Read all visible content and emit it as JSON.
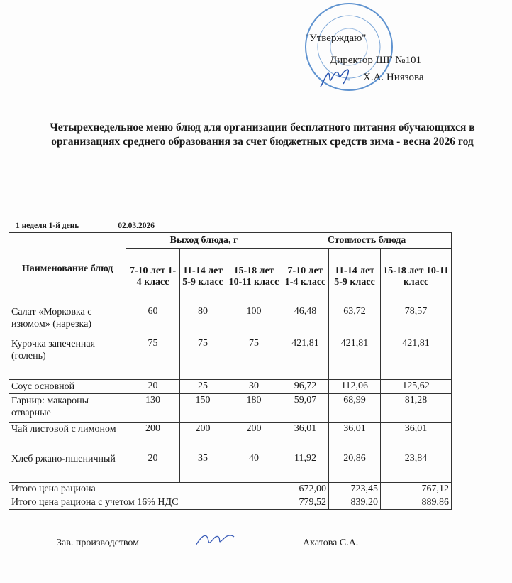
{
  "approval": {
    "approve_label": "\"Утверждаю\"",
    "position": "Директор ШГ №101",
    "name": "Х.А. Ниязова"
  },
  "stamp": {
    "text": "АЛМАТЫ ҚАЛАСЫ БІЛІМ БАСҚАРМАСЫНЫҢ №101 МЕКТЕП-ГИМНАЗИЯ КОММУНАЛДЫҚ МЕМЛЕКЕТТІК МЕКЕМЕСІ",
    "bin": "БСН 981140001002",
    "color": "#2a6fc0"
  },
  "title": "Четырехнедельное меню блюд для организации бесплатного питания обучающихся в организациях среднего образования за счет бюджетных средств    зима - весна 2026 год",
  "meta": {
    "day": "1 неделя 1-й день",
    "date": "02.03.2026"
  },
  "table": {
    "header": {
      "name": "Наименование блюд",
      "yield": "Выход блюда, г",
      "cost": "Стоимость блюда",
      "yield_cols": [
        "7-10 лет 1-4 класс",
        "11-14 лет 5-9 класс",
        "15-18 лет 10-11 класс"
      ],
      "cost_cols": [
        "7-10 лет 1-4 класс",
        "11-14 лет 5-9 класс",
        "15-18 лет 10-11 класс"
      ]
    },
    "rows": [
      {
        "name": "Салат «Морковка с изюмом» (нарезка)",
        "y": [
          "60",
          "80",
          "100"
        ],
        "c": [
          "46,48",
          "63,72",
          "78,57"
        ]
      },
      {
        "name": "Курочка запеченная (голень)",
        "y": [
          "75",
          "75",
          "75"
        ],
        "c": [
          "421,81",
          "421,81",
          "421,81"
        ]
      },
      {
        "name": "Соус основной",
        "y": [
          "20",
          "25",
          "30"
        ],
        "c": [
          "96,72",
          "112,06",
          "125,62"
        ]
      },
      {
        "name": "Гарнир: макароны отварные",
        "y": [
          "130",
          "150",
          "180"
        ],
        "c": [
          "59,07",
          "68,99",
          "81,28"
        ]
      },
      {
        "name": "Чай листовой с лимоном",
        "y": [
          "200",
          "200",
          "200"
        ],
        "c": [
          "36,01",
          "36,01",
          "36,01"
        ]
      },
      {
        "name": "Хлеб ржано-пшеничный",
        "y": [
          "20",
          "35",
          "40"
        ],
        "c": [
          "11,92",
          "20,86",
          "23,84"
        ]
      }
    ],
    "totals": [
      {
        "label": "Итого цена рациона",
        "c": [
          "672,00",
          "723,45",
          "767,12"
        ]
      },
      {
        "label": "Итого цена рациона с учетом 16% НДС",
        "c": [
          "779,52",
          "839,20",
          "889,86"
        ]
      }
    ]
  },
  "footer": {
    "position": "Зав. производством",
    "name": "Ахатова С.А."
  }
}
